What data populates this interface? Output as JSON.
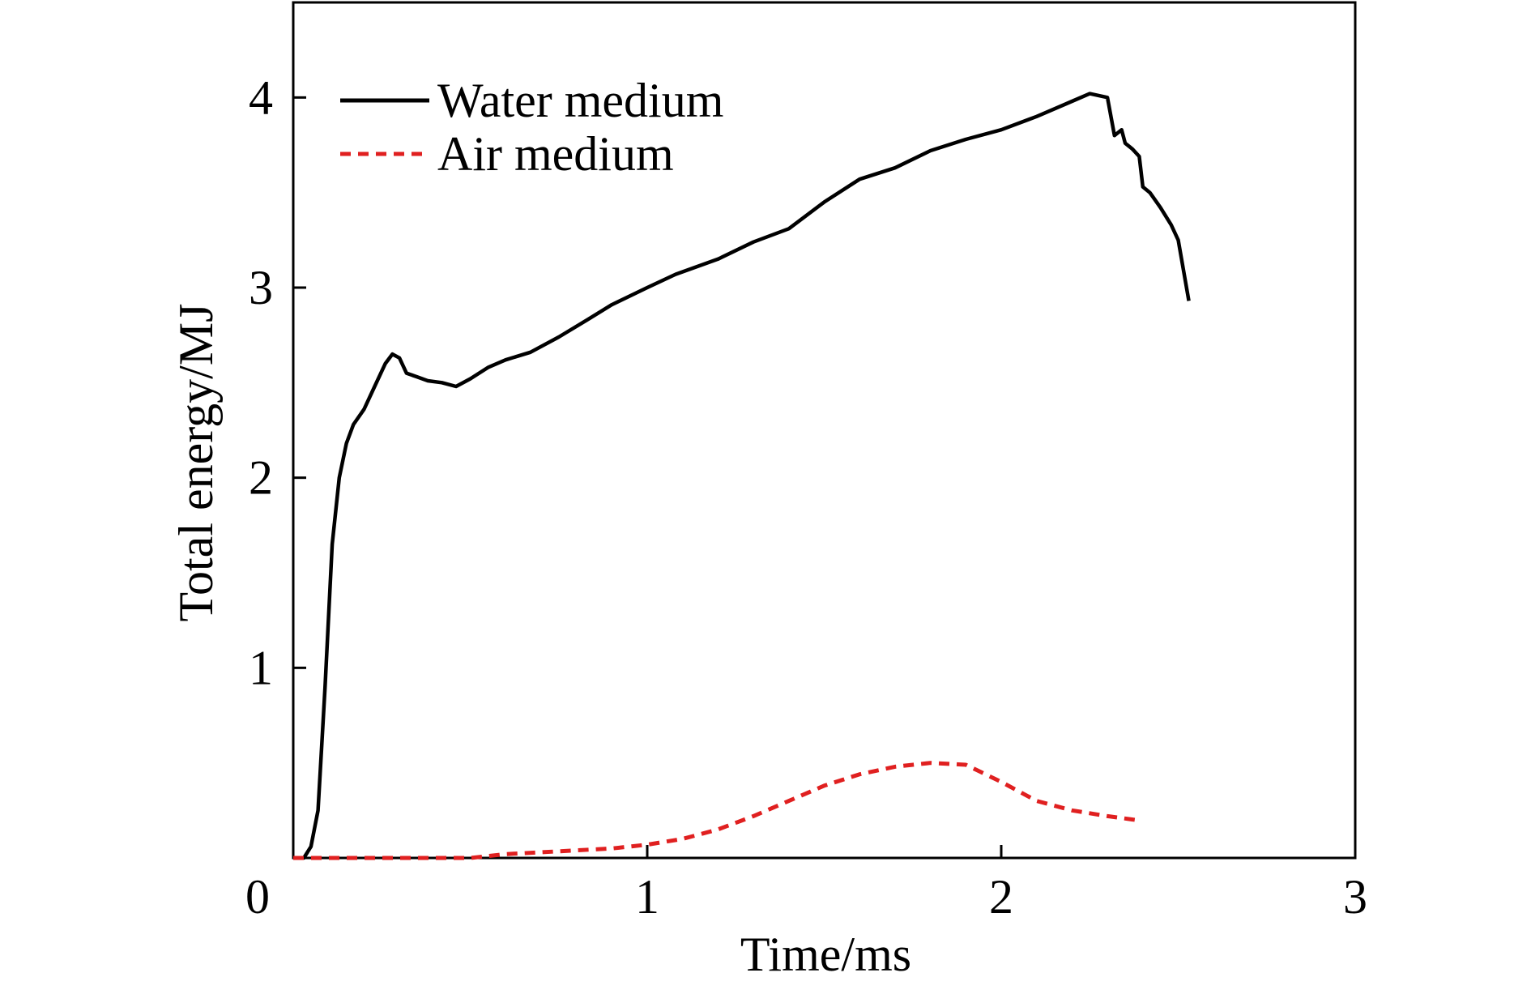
{
  "chart_data": {
    "type": "line",
    "title": "",
    "xlabel": "Time/ms",
    "ylabel": "Total energy/MJ",
    "xlim": [
      0,
      3
    ],
    "ylim": [
      0,
      4.5
    ],
    "xticks": [
      0,
      1,
      2,
      3
    ],
    "yticks": [
      1,
      2,
      3,
      4
    ],
    "xtick_labels": [
      "0",
      "1",
      "2",
      "3"
    ],
    "ytick_labels": [
      "1",
      "2",
      "3",
      "4"
    ],
    "grid": false,
    "legend": {
      "position": "top-left"
    },
    "series": [
      {
        "name": "Water medium",
        "color": "#000000",
        "dash": "solid",
        "x": [
          0.0,
          0.03,
          0.05,
          0.07,
          0.09,
          0.11,
          0.13,
          0.15,
          0.17,
          0.2,
          0.23,
          0.26,
          0.28,
          0.3,
          0.32,
          0.35,
          0.38,
          0.42,
          0.46,
          0.5,
          0.55,
          0.6,
          0.67,
          0.75,
          0.83,
          0.9,
          1.0,
          1.08,
          1.2,
          1.3,
          1.4,
          1.5,
          1.6,
          1.7,
          1.8,
          1.9,
          2.0,
          2.1,
          2.2,
          2.25,
          2.3,
          2.32,
          2.34,
          2.35,
          2.37,
          2.39,
          2.4,
          2.42,
          2.45,
          2.48,
          2.5,
          2.53
        ],
        "y": [
          0.0,
          0.0,
          0.06,
          0.25,
          0.9,
          1.65,
          2.0,
          2.18,
          2.28,
          2.36,
          2.48,
          2.6,
          2.65,
          2.63,
          2.55,
          2.53,
          2.51,
          2.5,
          2.48,
          2.52,
          2.58,
          2.62,
          2.66,
          2.74,
          2.83,
          2.91,
          3.0,
          3.07,
          3.15,
          3.24,
          3.31,
          3.45,
          3.57,
          3.63,
          3.72,
          3.78,
          3.83,
          3.9,
          3.98,
          4.02,
          4.0,
          3.8,
          3.83,
          3.76,
          3.73,
          3.69,
          3.53,
          3.5,
          3.42,
          3.33,
          3.25,
          2.93
        ]
      },
      {
        "name": "Air medium",
        "color": "#e02020",
        "dash": "dashed",
        "x": [
          0.0,
          0.5,
          0.6,
          0.7,
          0.8,
          0.9,
          1.0,
          1.1,
          1.2,
          1.3,
          1.4,
          1.5,
          1.6,
          1.7,
          1.8,
          1.9,
          2.0,
          2.1,
          2.2,
          2.3,
          2.38
        ],
        "y": [
          0.0,
          0.0,
          0.02,
          0.03,
          0.04,
          0.05,
          0.07,
          0.1,
          0.15,
          0.22,
          0.3,
          0.38,
          0.44,
          0.48,
          0.5,
          0.49,
          0.4,
          0.3,
          0.25,
          0.22,
          0.2
        ]
      }
    ]
  }
}
